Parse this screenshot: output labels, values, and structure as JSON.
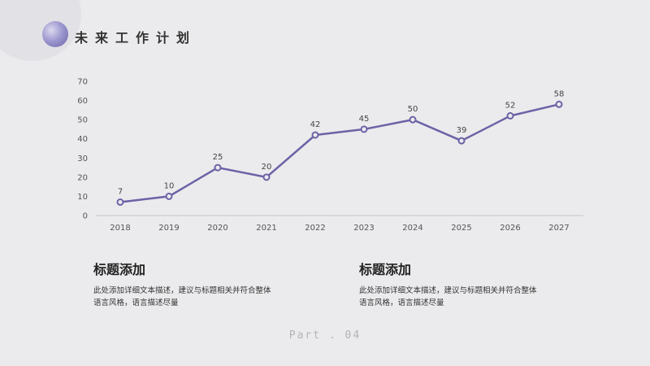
{
  "header": {
    "title": "未来工作计划"
  },
  "chart_data": {
    "type": "line",
    "x": [
      "2018",
      "2019",
      "2020",
      "2021",
      "2022",
      "2023",
      "2024",
      "2025",
      "2026",
      "2027"
    ],
    "values": [
      7,
      10,
      25,
      20,
      42,
      45,
      50,
      39,
      52,
      58
    ],
    "yticks": [
      "0",
      "10",
      "20",
      "30",
      "40",
      "50",
      "60",
      "70"
    ],
    "ylim": [
      0,
      70
    ],
    "color": "#6b63a6",
    "marker_fill": "#ebebed",
    "grid": false
  },
  "blocks": [
    {
      "title": "标题添加",
      "body_line1": "此处添加详细文本描述，建议与标题相关并符合整体",
      "body_line2": "语言风格，语言描述尽量"
    },
    {
      "title": "标题添加",
      "body_line1": "此处添加详细文本描述，建议与标题相关并符合整体",
      "body_line2": "语言风格，语言描述尽量"
    }
  ],
  "footer": {
    "label": "Part . 04"
  }
}
